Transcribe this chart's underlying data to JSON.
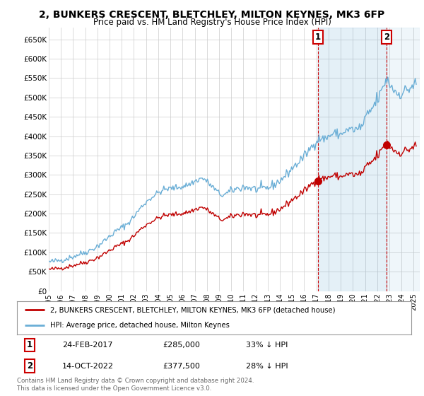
{
  "title": "2, BUNKERS CRESCENT, BLETCHLEY, MILTON KEYNES, MK3 6FP",
  "subtitle": "Price paid vs. HM Land Registry's House Price Index (HPI)",
  "ylabel_ticks": [
    "£0",
    "£50K",
    "£100K",
    "£150K",
    "£200K",
    "£250K",
    "£300K",
    "£350K",
    "£400K",
    "£450K",
    "£500K",
    "£550K",
    "£600K",
    "£650K"
  ],
  "ytick_values": [
    0,
    50000,
    100000,
    150000,
    200000,
    250000,
    300000,
    350000,
    400000,
    450000,
    500000,
    550000,
    600000,
    650000
  ],
  "ylim": [
    0,
    680000
  ],
  "xlim_start": 1995.0,
  "xlim_end": 2025.5,
  "hpi_color": "#6aaed6",
  "hpi_fill_color": "#ddeeff",
  "price_color": "#c00000",
  "marker1_year": 2017.12,
  "marker1_price": 285000,
  "marker2_year": 2022.79,
  "marker2_price": 377500,
  "legend_line1": "2, BUNKERS CRESCENT, BLETCHLEY, MILTON KEYNES, MK3 6FP (detached house)",
  "legend_line2": "HPI: Average price, detached house, Milton Keynes",
  "annotation1_date": "24-FEB-2017",
  "annotation1_price": "£285,000",
  "annotation1_hpi": "33% ↓ HPI",
  "annotation2_date": "14-OCT-2022",
  "annotation2_price": "£377,500",
  "annotation2_hpi": "28% ↓ HPI",
  "footer": "Contains HM Land Registry data © Crown copyright and database right 2024.\nThis data is licensed under the Open Government Licence v3.0.",
  "bg_color": "#ffffff",
  "plot_bg_color": "#ffffff",
  "grid_color": "#cccccc",
  "vline_color": "#cc0000"
}
